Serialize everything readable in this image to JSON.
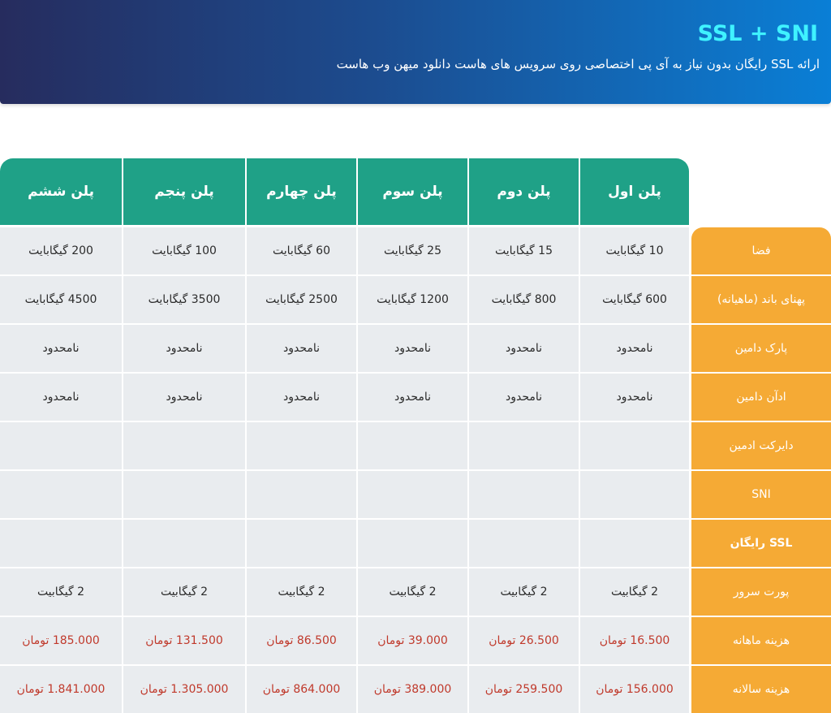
{
  "header": {
    "title": "SSL + SNI",
    "subtitle": "ارائه SSL رایگان بدون نیاز به آی پی اختصاصی روی سرویس های هاست دانلود میهن وب هاست"
  },
  "plans": [
    "پلن اول",
    "پلن دوم",
    "پلن سوم",
    "پلن چهارم",
    "پلن پنجم",
    "پلن ششم"
  ],
  "features": [
    {
      "label": "فضا",
      "values": [
        "10 گیگابایت",
        "15 گیگابایت",
        "25 گیگابایت",
        "60 گیگابایت",
        "100 گیگابایت",
        "200 گیگابایت"
      ]
    },
    {
      "label": "پهنای باند (ماهیانه)",
      "values": [
        "600 گیگابایت",
        "800 گیگابایت",
        "1200 گیگابایت",
        "2500 گیگابایت",
        "3500 گیگابایت",
        "4500 گیگابایت"
      ]
    },
    {
      "label": "پارک دامین",
      "values": [
        "نامحدود",
        "نامحدود",
        "نامحدود",
        "نامحدود",
        "نامحدود",
        "نامحدود"
      ]
    },
    {
      "label": "ادآن دامین",
      "values": [
        "نامحدود",
        "نامحدود",
        "نامحدود",
        "نامحدود",
        "نامحدود",
        "نامحدود"
      ]
    },
    {
      "label": "دایرکت ادمین",
      "values": [
        "",
        "",
        "",
        "",
        "",
        ""
      ]
    },
    {
      "label": "SNI",
      "values": [
        "",
        "",
        "",
        "",
        "",
        ""
      ]
    },
    {
      "label": "SSL رایگان",
      "bold": true,
      "values": [
        "",
        "",
        "",
        "",
        "",
        ""
      ]
    },
    {
      "label": "پورت سرور",
      "values": [
        "2 گیگابیت",
        "2 گیگابیت",
        "2 گیگابیت",
        "2 گیگابیت",
        "2 گیگابیت",
        "2 گیگابیت"
      ]
    },
    {
      "label": "هزینه ماهانه",
      "price": true,
      "values": [
        "16.500 تومان",
        "26.500 تومان",
        "39.000 تومان",
        "86.500 تومان",
        "131.500 تومان",
        "185.000 تومان"
      ]
    },
    {
      "label": "هزینه سالانه",
      "price": true,
      "values": [
        "156.000 تومان",
        "259.500 تومان",
        "389.000 تومان",
        "864.000 تومان",
        "1.305.000 تومان",
        "1.841.000 تومان"
      ]
    }
  ],
  "colors": {
    "plan_header_bg": "#1fa187",
    "feature_bg": "#f5aa35",
    "cell_bg": "#e9ecef",
    "price_text": "#c0392b",
    "title_accent": "#3ff2ff"
  }
}
